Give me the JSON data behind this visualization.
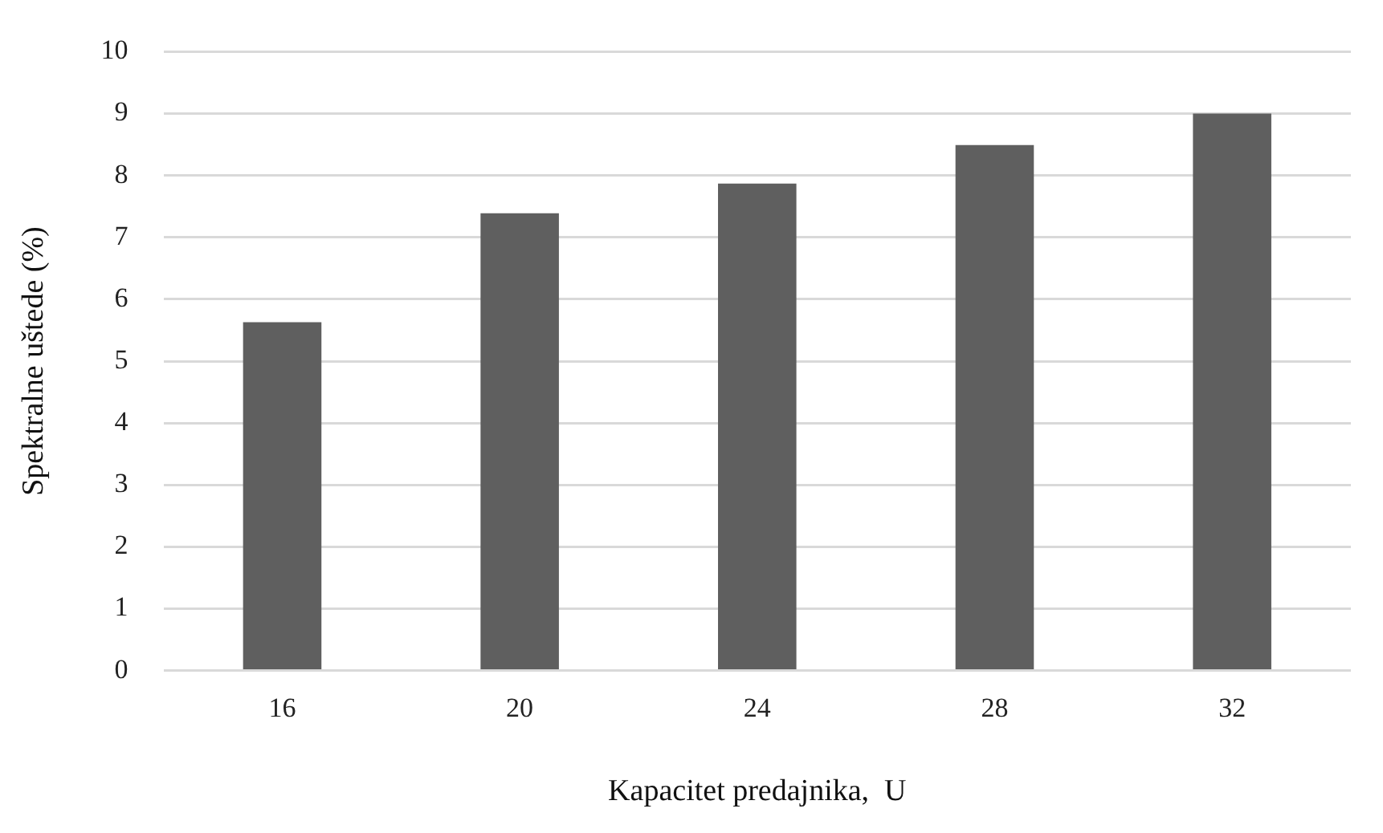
{
  "chart_data": {
    "type": "bar",
    "xlabel": "Kapacitet predajnika,  U",
    "ylabel": "Spektralne uštede (%)",
    "categories": [
      "16",
      "20",
      "24",
      "28",
      "32"
    ],
    "values": [
      5.63,
      7.39,
      7.87,
      8.49,
      9.0
    ],
    "color": "#5f5f5f",
    "ylim": [
      0,
      10
    ],
    "yticks": [
      0,
      1,
      2,
      3,
      4,
      5,
      6,
      7,
      8,
      9,
      10
    ],
    "grid": "y",
    "legend": false
  }
}
